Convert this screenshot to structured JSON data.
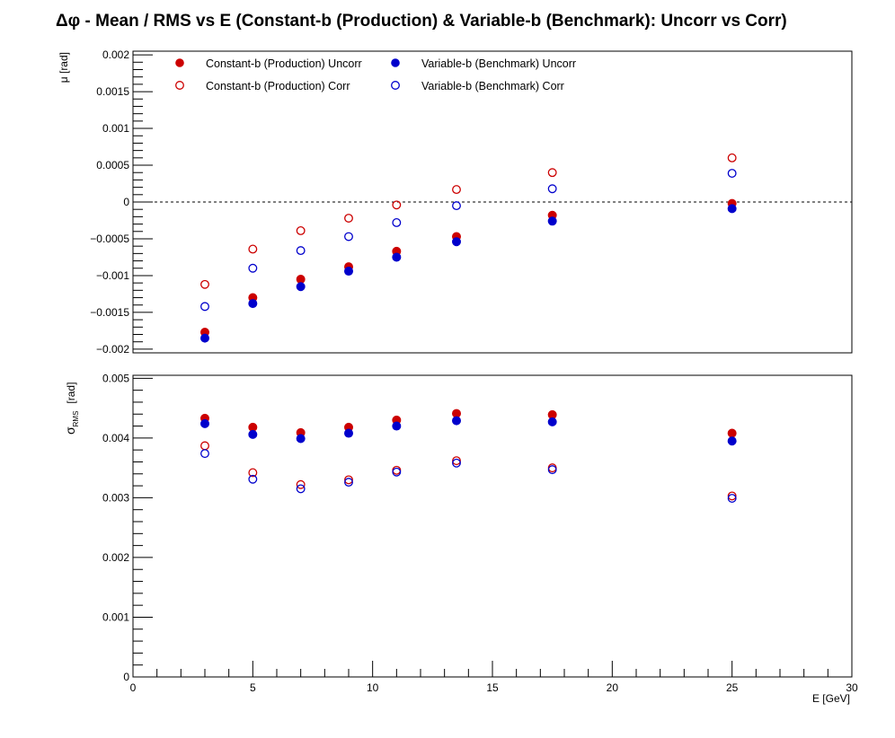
{
  "chart_data": {
    "title": "Δφ  -  Mean / RMS vs E  (Constant-b (Production) & Variable-b (Benchmark): Uncorr vs Corr)",
    "type": "scatter",
    "x": [
      3,
      5,
      7,
      9,
      11,
      13.5,
      17.5,
      25
    ],
    "xlabel": "E  [GeV]",
    "xlim": [
      0,
      30
    ],
    "xticks": [
      "0",
      "5",
      "10",
      "15",
      "20",
      "25",
      "30"
    ],
    "colors": {
      "constant_b": "#cc0000",
      "variable_b": "#0000cc"
    },
    "legend": [
      {
        "label": "Constant-b (Production) Uncorr",
        "color": "#cc0000",
        "marker": "filled"
      },
      {
        "label": "Variable-b (Benchmark) Uncorr",
        "color": "#0000cc",
        "marker": "filled"
      },
      {
        "label": "Constant-b (Production) Corr",
        "color": "#cc0000",
        "marker": "open"
      },
      {
        "label": "Variable-b (Benchmark) Corr",
        "color": "#0000cc",
        "marker": "open"
      }
    ],
    "panels": [
      {
        "ylabel": "μ  [rad]",
        "ylim": [
          -0.00205,
          0.00205
        ],
        "yticks": [
          {
            "value": 0.002,
            "label": "0.002"
          },
          {
            "value": 0.0015,
            "label": "0.0015"
          },
          {
            "value": 0.001,
            "label": "0.001"
          },
          {
            "value": 0.0005,
            "label": "0.0005"
          },
          {
            "value": 0,
            "label": "0"
          },
          {
            "value": -0.0005,
            "label": "−0.0005"
          },
          {
            "value": -0.001,
            "label": "−0.001"
          },
          {
            "value": -0.0015,
            "label": "−0.0015"
          },
          {
            "value": -0.002,
            "label": "−0.002"
          }
        ],
        "reference_line": 0,
        "series": [
          {
            "name": "Constant-b (Production) Uncorr",
            "color": "#cc0000",
            "marker": "filled",
            "values": [
              -0.00177,
              -0.0013,
              -0.00105,
              -0.00088,
              -0.00067,
              -0.00047,
              -0.00018,
              -2e-05
            ]
          },
          {
            "name": "Variable-b (Benchmark) Uncorr",
            "color": "#0000cc",
            "marker": "filled",
            "values": [
              -0.00185,
              -0.00138,
              -0.00115,
              -0.00094,
              -0.00075,
              -0.00054,
              -0.00026,
              -9e-05
            ]
          },
          {
            "name": "Constant-b (Production) Corr",
            "color": "#cc0000",
            "marker": "open",
            "values": [
              -0.00112,
              -0.00064,
              -0.00039,
              -0.00022,
              -4e-05,
              0.00017,
              0.0004,
              0.0006
            ]
          },
          {
            "name": "Variable-b (Benchmark) Corr",
            "color": "#0000cc",
            "marker": "open",
            "values": [
              -0.00142,
              -0.0009,
              -0.00066,
              -0.00047,
              -0.00028,
              -5e-05,
              0.00018,
              0.00039
            ]
          }
        ]
      },
      {
        "ylabel_main": "σ",
        "ylabel_sub": "RMS",
        "ylabel_unit": "[rad]",
        "ylim": [
          0,
          0.00505
        ],
        "yticks": [
          {
            "value": 0.005,
            "label": "0.005"
          },
          {
            "value": 0.004,
            "label": "0.004"
          },
          {
            "value": 0.003,
            "label": "0.003"
          },
          {
            "value": 0.002,
            "label": "0.002"
          },
          {
            "value": 0.001,
            "label": "0.001"
          },
          {
            "value": 0,
            "label": "0"
          }
        ],
        "series": [
          {
            "name": "Constant-b (Production) Uncorr",
            "color": "#cc0000",
            "marker": "filled",
            "values": [
              0.00433,
              0.00418,
              0.00409,
              0.00418,
              0.0043,
              0.00441,
              0.00439,
              0.00408
            ]
          },
          {
            "name": "Variable-b (Benchmark) Uncorr",
            "color": "#0000cc",
            "marker": "filled",
            "values": [
              0.00424,
              0.00406,
              0.00399,
              0.00408,
              0.0042,
              0.00429,
              0.00427,
              0.00395
            ]
          },
          {
            "name": "Constant-b (Production) Corr",
            "color": "#cc0000",
            "marker": "open",
            "values": [
              0.00387,
              0.00342,
              0.00322,
              0.0033,
              0.00346,
              0.00362,
              0.0035,
              0.00303
            ]
          },
          {
            "name": "Variable-b (Benchmark) Corr",
            "color": "#0000cc",
            "marker": "open",
            "values": [
              0.00374,
              0.00331,
              0.00315,
              0.00326,
              0.00343,
              0.00358,
              0.00347,
              0.00299
            ]
          }
        ]
      }
    ]
  }
}
